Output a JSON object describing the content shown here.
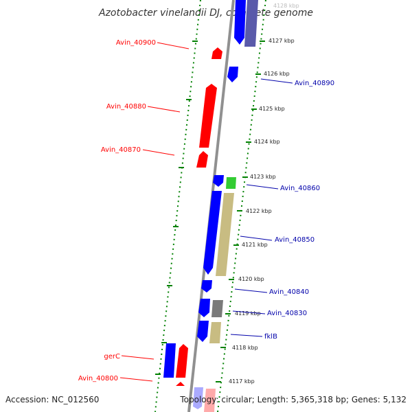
{
  "title": "Azotobacter vinelandii DJ, complete genome",
  "footer": {
    "accession": "Accession: NC_012560",
    "topology": "Topology: circular; Length: 5,365,318 bp; Genes: 5,132"
  },
  "colors": {
    "forward": "#ff0000",
    "reverse": "#0000ff",
    "backbone": "#808080",
    "ticks": "#008000",
    "tan": "#c8bc82",
    "green": "#33cc33",
    "purple": "#5a5aaa",
    "gray": "#7a7a7a"
  },
  "kbp_labels": [
    "4128 kbp",
    "4127 kbp",
    "4126 kbp",
    "4125 kbp",
    "4124 kbp",
    "4123 kbp",
    "4122 kbp",
    "4121 kbp",
    "4120 kbp",
    "4119 kbp",
    "4118 kbp",
    "4117 kbp"
  ],
  "left_labels": [
    "Avin_40900",
    "Avin_40880",
    "Avin_40870",
    "gerC",
    "Avin_40800"
  ],
  "right_labels": [
    "Avin_40890",
    "Avin_40860",
    "Avin_40850",
    "Avin_40840",
    "Avin_40830",
    "fklB"
  ]
}
